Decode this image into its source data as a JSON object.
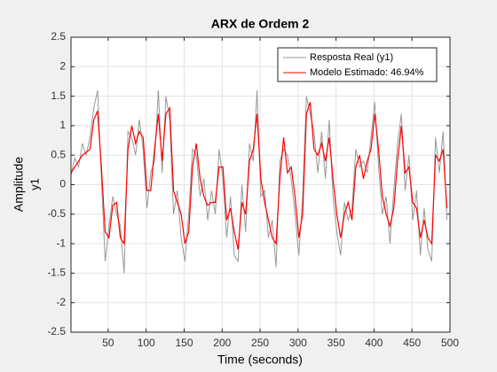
{
  "chart_data": {
    "type": "line",
    "title": "ARX de Ordem 2",
    "xlabel": "Time (seconds)",
    "ylabel": "Amplitude",
    "ylabel2": "y1",
    "x": [
      1,
      6,
      11,
      16,
      21,
      26,
      31,
      36,
      41,
      46,
      51,
      56,
      61,
      66,
      71,
      76,
      81,
      86,
      91,
      96,
      101,
      106,
      111,
      116,
      121,
      126,
      131,
      136,
      141,
      146,
      151,
      156,
      161,
      166,
      171,
      176,
      181,
      186,
      191,
      196,
      201,
      206,
      211,
      216,
      221,
      226,
      231,
      236,
      241,
      246,
      251,
      256,
      261,
      266,
      271,
      276,
      281,
      286,
      291,
      296,
      301,
      306,
      311,
      316,
      321,
      326,
      331,
      336,
      341,
      346,
      351,
      356,
      361,
      366,
      371,
      376,
      381,
      386,
      391,
      396,
      401,
      406,
      411,
      416,
      421,
      426,
      431,
      436,
      441,
      446,
      451,
      456,
      461,
      466,
      471,
      476,
      481,
      486,
      491,
      496
    ],
    "series": [
      {
        "name": "Resposta Real (y1)",
        "color": "#999999",
        "values": [
          0.15,
          0.45,
          0.3,
          0.7,
          0.5,
          0.8,
          1.3,
          1.6,
          0.1,
          -1.3,
          -0.7,
          -0.2,
          -0.5,
          -0.7,
          -1.5,
          0.9,
          0.8,
          0.5,
          1.1,
          0.6,
          -0.4,
          0.2,
          0.4,
          1.6,
          0.2,
          1.5,
          1.1,
          -0.5,
          -0.1,
          -0.9,
          -1.3,
          -0.5,
          0.6,
          0.5,
          -0.2,
          0.1,
          -0.6,
          -0.1,
          -0.5,
          0.6,
          0.1,
          -0.9,
          -0.2,
          -1.2,
          -1.3,
          0.0,
          -0.8,
          0.7,
          0.4,
          1.6,
          -0.2,
          -0.1,
          -0.9,
          -0.6,
          -1.4,
          0.4,
          0.6,
          0.5,
          0.1,
          -0.5,
          -1.2,
          -0.2,
          1.5,
          1.2,
          0.9,
          0.2,
          0.9,
          0.1,
          1.1,
          -0.2,
          -0.8,
          -1.2,
          -0.3,
          -0.6,
          -0.4,
          0.6,
          0.3,
          0.4,
          0.2,
          0.8,
          1.4,
          0.3,
          -0.5,
          -0.2,
          -1.0,
          -0.1,
          0.7,
          1.2,
          -0.1,
          0.5,
          -0.6,
          -0.1,
          -1.2,
          -0.4,
          -1.1,
          -1.3,
          0.8,
          0.2,
          0.9,
          -0.6
        ]
      },
      {
        "name": "Modelo Estimado: 46.94%",
        "color": "#ff0000",
        "values": [
          0.2,
          0.3,
          0.4,
          0.5,
          0.55,
          0.6,
          1.1,
          1.25,
          0.3,
          -0.8,
          -0.9,
          -0.35,
          -0.3,
          -0.9,
          -1.0,
          0.6,
          1.0,
          0.7,
          0.9,
          0.8,
          -0.1,
          -0.1,
          0.6,
          1.2,
          0.4,
          1.2,
          1.3,
          -0.1,
          -0.3,
          -0.5,
          -1.0,
          -0.8,
          0.3,
          0.7,
          0.1,
          -0.2,
          -0.35,
          -0.3,
          -0.3,
          0.3,
          0.3,
          -0.6,
          -0.4,
          -0.8,
          -1.1,
          -0.3,
          -0.5,
          0.4,
          0.6,
          1.2,
          0.1,
          -0.3,
          -0.6,
          -0.9,
          -1.0,
          0.1,
          0.8,
          0.2,
          0.3,
          -0.2,
          -0.9,
          -0.5,
          1.2,
          1.4,
          0.6,
          0.5,
          0.7,
          0.4,
          0.8,
          0.1,
          -0.5,
          -0.9,
          -0.5,
          -0.3,
          -0.6,
          0.3,
          0.5,
          0.1,
          0.4,
          0.6,
          1.2,
          0.6,
          -0.2,
          -0.5,
          -0.7,
          -0.4,
          0.4,
          1.0,
          0.2,
          0.3,
          -0.3,
          -0.4,
          -0.9,
          -0.6,
          -0.9,
          -1.0,
          0.5,
          0.4,
          0.6,
          -0.4
        ]
      }
    ],
    "xlim": [
      1,
      500
    ],
    "ylim": [
      -2.5,
      2.5
    ],
    "xticks": [
      50,
      100,
      150,
      200,
      250,
      300,
      350,
      400,
      450,
      500
    ],
    "yticks": [
      -2.5,
      -2,
      -1.5,
      -1,
      -0.5,
      0,
      0.5,
      1,
      1.5,
      2,
      2.5
    ],
    "grid": true,
    "legend": "northeast"
  }
}
